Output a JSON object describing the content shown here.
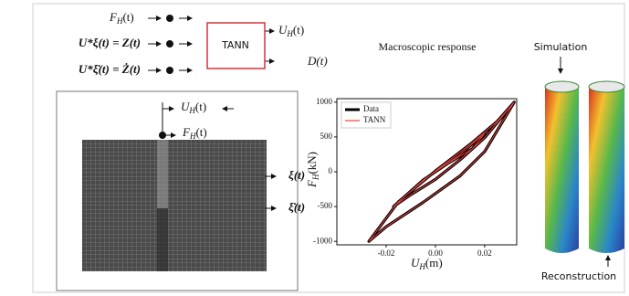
{
  "inputs": {
    "force": [
      "F",
      "H",
      "(t)"
    ],
    "state": "U*ξ(t) = Z(t)",
    "rate": "U*ξ̇(t) = Ż(t)"
  },
  "model": "TANN",
  "outputs": {
    "displacement": [
      "U",
      "H",
      "(t)"
    ],
    "dissipation": "D(t)"
  },
  "mesh_labels": {
    "displacement": [
      "U",
      "H",
      "(t)"
    ],
    "force": [
      "F",
      "H",
      "(t)"
    ]
  },
  "fields": {
    "xi": "ξ(t)",
    "xi_dot": "ξ̇(t)"
  },
  "chart_data": {
    "type": "line",
    "title": "Macroscopic response",
    "x_label": [
      "U",
      "H",
      "(m)"
    ],
    "y_label": [
      "F",
      "H",
      "(kN)"
    ],
    "x": [
      0,
      0.01,
      0.02,
      0.015,
      0.005,
      -0.005,
      -0.017,
      -0.01,
      0,
      0.01,
      0.02,
      0.032,
      0.025,
      0.015,
      0,
      -0.015,
      -0.027,
      -0.02,
      -0.005,
      0.01,
      0.02,
      0.032
    ],
    "series": [
      {
        "name": "Data",
        "color": "#000000",
        "values": [
          0,
          250,
          550,
          330,
          120,
          -120,
          -500,
          -330,
          -110,
          170,
          490,
          1000,
          720,
          420,
          10,
          -430,
          -1000,
          -790,
          -440,
          -60,
          290,
          1000
        ]
      },
      {
        "name": "TANN",
        "color": "#e8413c",
        "values": [
          0,
          250,
          550,
          330,
          120,
          -120,
          -500,
          -330,
          -110,
          170,
          490,
          1000,
          720,
          420,
          10,
          -430,
          -1000,
          -790,
          -440,
          -60,
          290,
          1000
        ]
      }
    ],
    "xlim": [
      -0.04,
      0.033
    ],
    "ylim": [
      -1050,
      1050
    ],
    "xticks": [
      -0.02,
      {
        "value": 0,
        "label": "0.00"
      },
      0.02
    ],
    "yticks": [
      1000,
      500,
      0,
      -500,
      -1000
    ],
    "legend": "upper-left"
  },
  "panels": {
    "simulation": "Simulation",
    "reconstruction": "Reconstruction"
  }
}
